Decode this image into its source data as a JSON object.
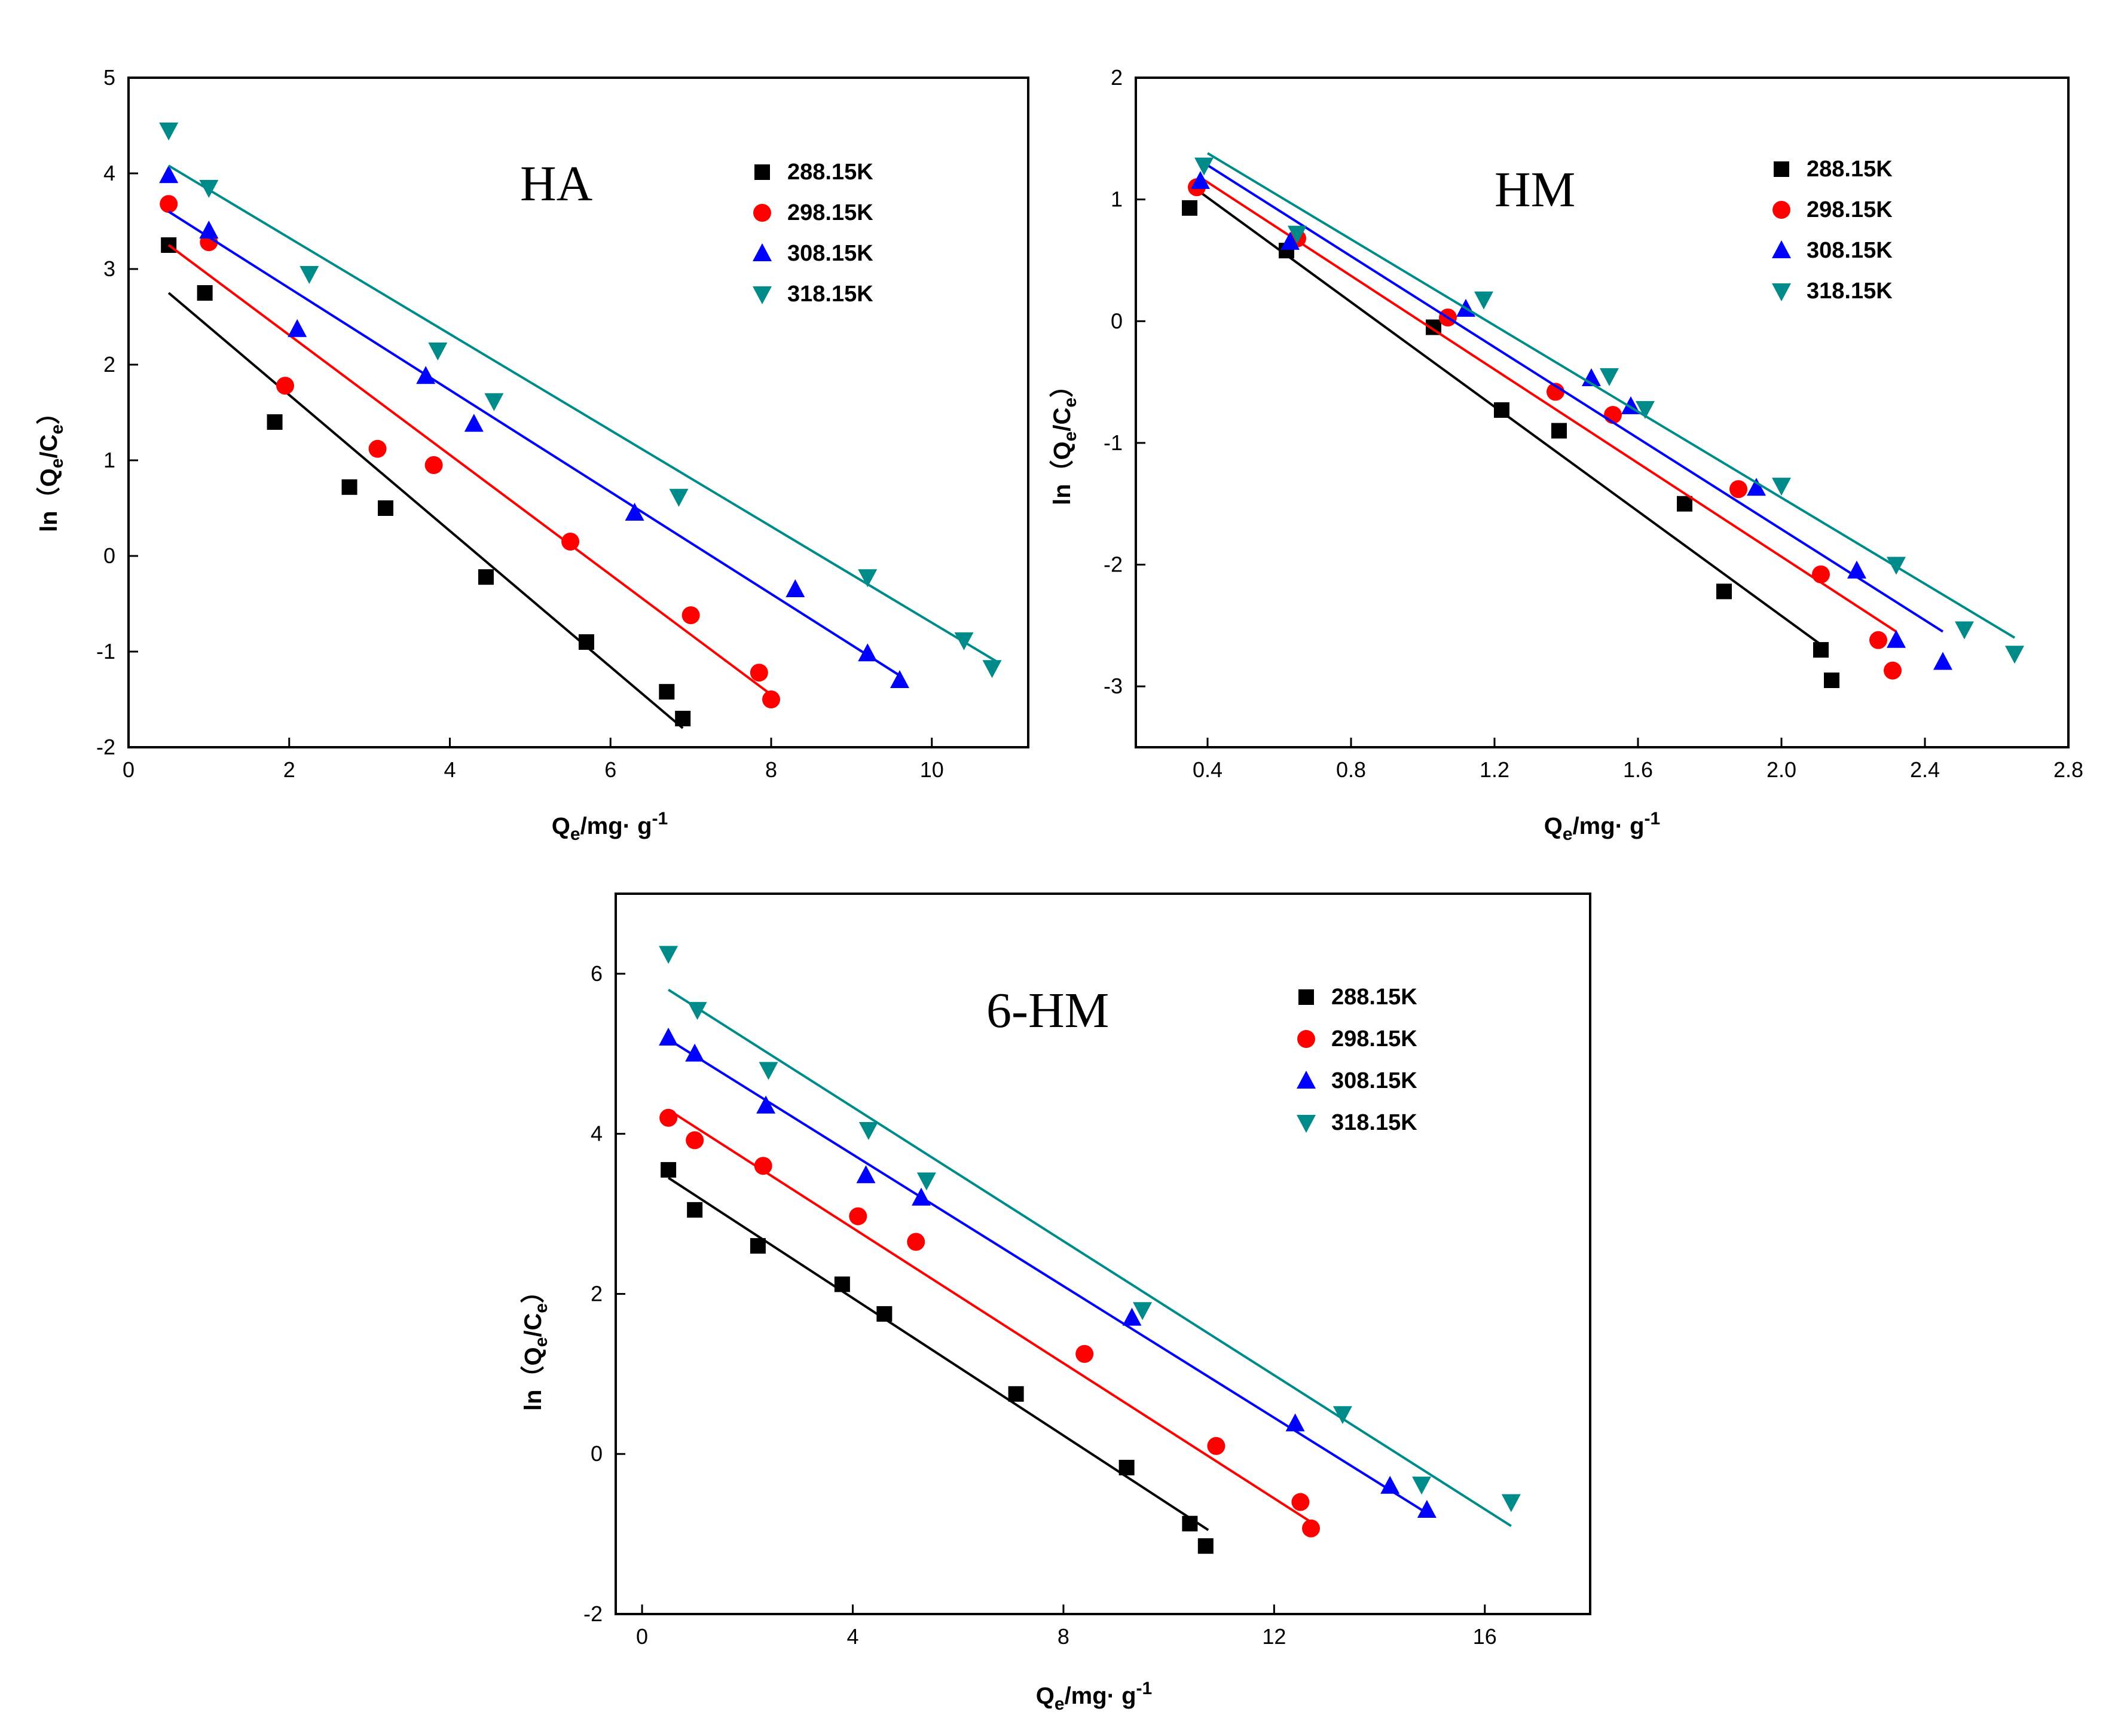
{
  "chart_data": [
    {
      "type": "scatter",
      "title": "HA",
      "xlabel": "Qe/mg· g-1",
      "ylabel": "ln（Qe/Ce）",
      "xlim": [
        0,
        11.2
      ],
      "ylim": [
        -2,
        5
      ],
      "xticks": [
        0,
        2,
        4,
        6,
        8,
        10
      ],
      "yticks": [
        -2,
        -1,
        0,
        1,
        2,
        3,
        4,
        5
      ],
      "series": [
        {
          "name": "288.15K",
          "color": "#000000",
          "marker": "square",
          "x": [
            0.5,
            0.95,
            1.82,
            2.75,
            3.2,
            4.45,
            5.7,
            6.7,
            6.9
          ],
          "y": [
            3.25,
            2.75,
            1.4,
            0.72,
            0.5,
            -0.22,
            -0.9,
            -1.42,
            -1.7
          ],
          "fit": [
            [
              0.5,
              2.75
            ],
            [
              6.9,
              -1.8
            ]
          ]
        },
        {
          "name": "298.15K",
          "color": "#ff0000",
          "marker": "circle",
          "x": [
            0.5,
            1.0,
            1.95,
            3.1,
            3.8,
            5.5,
            7.0,
            7.85,
            8.0
          ],
          "y": [
            3.68,
            3.28,
            1.78,
            1.12,
            0.95,
            0.15,
            -0.62,
            -1.22,
            -1.5
          ],
          "fit": [
            [
              0.5,
              3.25
            ],
            [
              8.0,
              -1.45
            ]
          ]
        },
        {
          "name": "308.15K",
          "color": "#0000ff",
          "marker": "triangle-up",
          "x": [
            0.5,
            1.0,
            2.1,
            3.7,
            4.3,
            6.3,
            8.3,
            9.2,
            9.6
          ],
          "y": [
            3.98,
            3.4,
            2.37,
            1.88,
            1.38,
            0.45,
            -0.35,
            -1.02,
            -1.3
          ],
          "fit": [
            [
              0.5,
              3.6
            ],
            [
              9.6,
              -1.25
            ]
          ]
        },
        {
          "name": "318.15K",
          "color": "#008b8b",
          "marker": "triangle-down",
          "x": [
            0.5,
            1.0,
            2.25,
            3.85,
            4.55,
            6.85,
            9.2,
            10.4,
            10.75
          ],
          "y": [
            4.45,
            3.85,
            2.95,
            2.15,
            1.62,
            0.62,
            -0.22,
            -0.88,
            -1.17
          ],
          "fit": [
            [
              0.5,
              4.08
            ],
            [
              10.8,
              -1.1
            ]
          ]
        }
      ]
    },
    {
      "type": "scatter",
      "title": "HM",
      "xlabel": "Qe/mg· g-1",
      "ylabel": "ln（Qe/Ce）",
      "xlim": [
        0.2,
        2.8
      ],
      "ylim": [
        -3.5,
        2
      ],
      "xticks": [
        0.4,
        0.8,
        1.2,
        1.6,
        2.0,
        2.4,
        2.8
      ],
      "xticklabels": [
        "0.4",
        "0.8",
        "1.2",
        "1.6",
        "2.0",
        "2.4",
        "2.8"
      ],
      "yticks": [
        -3,
        -2,
        -1,
        0,
        1,
        2
      ],
      "series": [
        {
          "name": "288.15K",
          "color": "#000000",
          "marker": "square",
          "x": [
            0.35,
            0.62,
            1.03,
            1.22,
            1.38,
            1.73,
            1.84,
            2.11,
            2.14
          ],
          "y": [
            0.93,
            0.58,
            -0.05,
            -0.73,
            -0.9,
            -1.5,
            -2.22,
            -2.7,
            -2.95
          ],
          "fit": [
            [
              0.37,
              1.08
            ],
            [
              2.13,
              -2.7
            ]
          ]
        },
        {
          "name": "298.15K",
          "color": "#ff0000",
          "marker": "circle",
          "x": [
            0.37,
            0.65,
            1.07,
            1.37,
            1.53,
            1.88,
            2.11,
            2.27,
            2.31
          ],
          "y": [
            1.1,
            0.68,
            0.03,
            -0.58,
            -0.77,
            -1.38,
            -2.08,
            -2.62,
            -2.87
          ],
          "fit": [
            [
              0.38,
              1.18
            ],
            [
              2.32,
              -2.55
            ]
          ]
        },
        {
          "name": "308.15K",
          "color": "#0000ff",
          "marker": "triangle-up",
          "x": [
            0.38,
            0.63,
            1.12,
            1.47,
            1.58,
            1.93,
            2.21,
            2.32,
            2.45
          ],
          "y": [
            1.15,
            0.65,
            0.1,
            -0.47,
            -0.7,
            -1.37,
            -2.05,
            -2.62,
            -2.8
          ],
          "fit": [
            [
              0.39,
              1.3
            ],
            [
              2.45,
              -2.55
            ]
          ]
        },
        {
          "name": "318.15K",
          "color": "#008b8b",
          "marker": "triangle-down",
          "x": [
            0.39,
            0.65,
            1.17,
            1.52,
            1.62,
            2.0,
            2.32,
            2.51,
            2.65
          ],
          "y": [
            1.28,
            0.72,
            0.18,
            -0.45,
            -0.72,
            -1.35,
            -2.0,
            -2.53,
            -2.73
          ],
          "fit": [
            [
              0.4,
              1.38
            ],
            [
              2.65,
              -2.6
            ]
          ]
        }
      ]
    },
    {
      "type": "scatter",
      "title": "6-HM",
      "xlabel": "Qe/mg· g-1",
      "ylabel": "ln（Qe/Ce）",
      "xlim": [
        -0.5,
        18
      ],
      "ylim": [
        -2,
        7
      ],
      "xticks": [
        0,
        4,
        8,
        12,
        16
      ],
      "yticks": [
        -2,
        0,
        2,
        4,
        6
      ],
      "series": [
        {
          "name": "288.15K",
          "color": "#000000",
          "marker": "square",
          "x": [
            0.5,
            1.0,
            2.2,
            3.8,
            4.6,
            7.1,
            9.2,
            10.4,
            10.7
          ],
          "y": [
            3.55,
            3.05,
            2.6,
            2.12,
            1.75,
            0.75,
            -0.17,
            -0.87,
            -1.15
          ],
          "fit": [
            [
              0.5,
              3.45
            ],
            [
              10.75,
              -0.95
            ]
          ]
        },
        {
          "name": "298.15K",
          "color": "#ff0000",
          "marker": "circle",
          "x": [
            0.5,
            1.0,
            2.3,
            4.1,
            5.2,
            8.4,
            10.9,
            12.5,
            12.7
          ],
          "y": [
            4.2,
            3.92,
            3.6,
            2.97,
            2.65,
            1.25,
            0.1,
            -0.6,
            -0.93
          ],
          "fit": [
            [
              0.5,
              4.3
            ],
            [
              12.7,
              -0.85
            ]
          ]
        },
        {
          "name": "308.15K",
          "color": "#0000ff",
          "marker": "triangle-up",
          "x": [
            0.5,
            1.0,
            2.35,
            4.25,
            5.3,
            9.3,
            12.4,
            14.2,
            14.9
          ],
          "y": [
            5.2,
            5.0,
            4.35,
            3.48,
            3.2,
            1.7,
            0.38,
            -0.4,
            -0.7
          ],
          "fit": [
            [
              0.5,
              5.18
            ],
            [
              15.0,
              -0.78
            ]
          ]
        },
        {
          "name": "318.15K",
          "color": "#008b8b",
          "marker": "triangle-down",
          "x": [
            0.5,
            1.05,
            2.4,
            4.3,
            5.4,
            9.5,
            13.3,
            14.8,
            16.5
          ],
          "y": [
            6.25,
            5.55,
            4.8,
            4.05,
            3.42,
            1.8,
            0.5,
            -0.38,
            -0.6
          ],
          "fit": [
            [
              0.5,
              5.8
            ],
            [
              16.5,
              -0.9
            ]
          ]
        }
      ]
    }
  ]
}
